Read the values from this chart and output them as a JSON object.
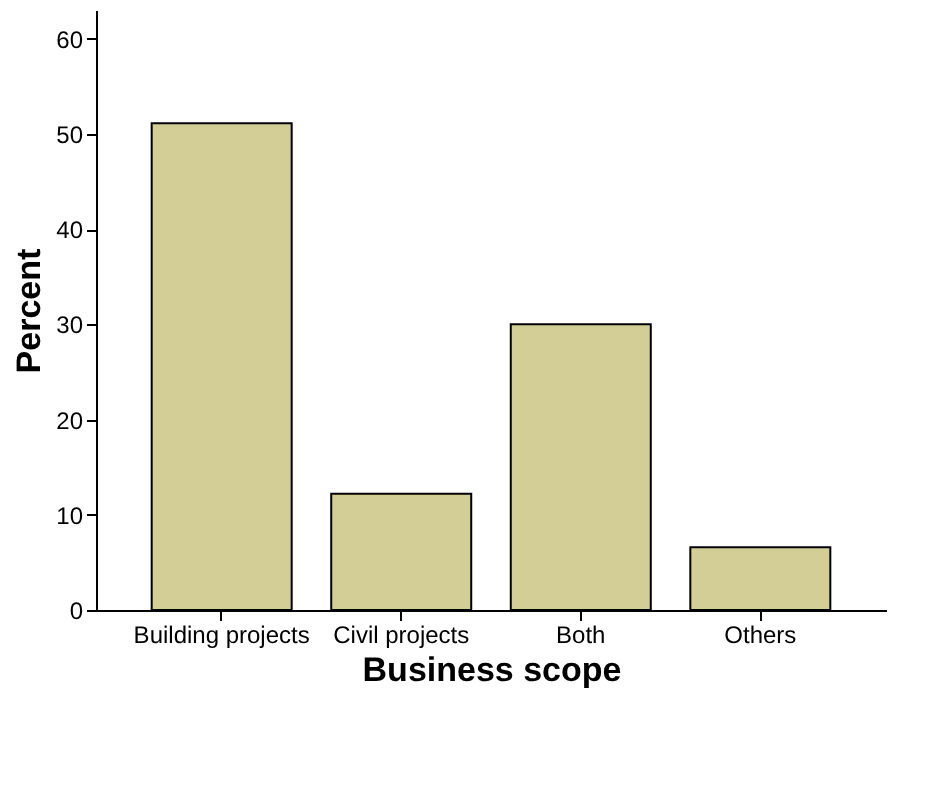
{
  "chart_data": {
    "type": "bar",
    "xlabel": "Business scope",
    "ylabel": "Percent",
    "categories": [
      "Building projects",
      "Civil projects",
      "Both",
      "Others"
    ],
    "values": [
      51.1,
      12.2,
      30.0,
      6.6
    ],
    "color": "#d3ce96",
    "ylim": [
      0,
      63
    ],
    "yticks": [
      0,
      10,
      20,
      30,
      40,
      50,
      60
    ],
    "grid": false
  }
}
